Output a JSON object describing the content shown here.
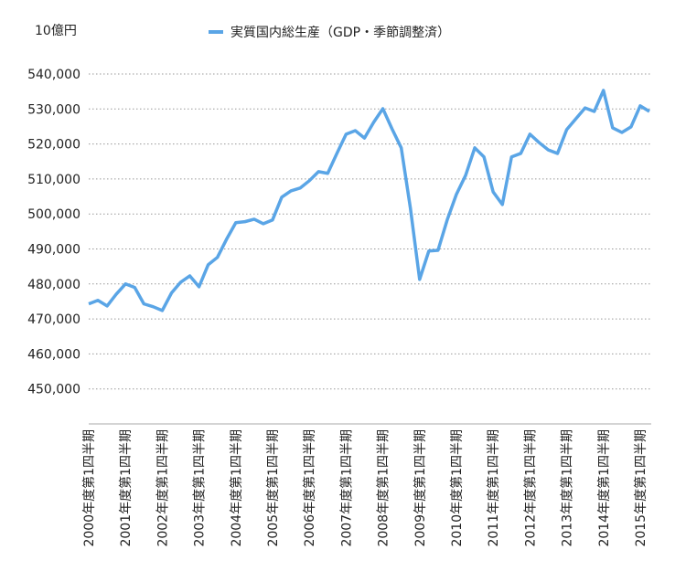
{
  "chart_data": {
    "type": "line",
    "unit_label": "10億円",
    "categories": [
      "2000年度第1四半期",
      null,
      null,
      null,
      "2001年度第1四半期",
      null,
      null,
      null,
      "2002年度第1四半期",
      null,
      null,
      null,
      "2003年度第1四半期",
      null,
      null,
      null,
      "2004年度第1四半期",
      null,
      null,
      null,
      "2005年度第1四半期",
      null,
      null,
      null,
      "2006年度第1四半期",
      null,
      null,
      null,
      "2007年度第1四半期",
      null,
      null,
      null,
      "2008年度第1四半期",
      null,
      null,
      null,
      "2009年度第1四半期",
      null,
      null,
      null,
      "2010年度第1四半期",
      null,
      null,
      null,
      "2011年度第1四半期",
      null,
      null,
      null,
      "2012年度第1四半期",
      null,
      null,
      null,
      "2013年度第1四半期",
      null,
      null,
      null,
      "2014年度第1四半期",
      null,
      null,
      null,
      "2015年度第1四半期",
      null
    ],
    "series": [
      {
        "name": "実質国内総生産（GDP・季節調整済）",
        "color": "#5aa5e6",
        "values": [
          474300,
          475300,
          473700,
          477100,
          480000,
          479000,
          474300,
          473500,
          472400,
          477400,
          480500,
          482300,
          479200,
          485500,
          487600,
          492800,
          497500,
          497800,
          498500,
          497200,
          498300,
          504800,
          506600,
          507400,
          509500,
          512100,
          511600,
          517300,
          522800,
          523800,
          521700,
          526200,
          530100,
          524300,
          518900,
          501600,
          481300,
          489400,
          489600,
          498300,
          505600,
          511000,
          518900,
          516300,
          506300,
          502700,
          516300,
          517300,
          522800,
          520400,
          518300,
          517300,
          524100,
          527200,
          530300,
          529300,
          535300,
          524600,
          523300,
          524900,
          530900,
          529300
        ]
      }
    ],
    "ylim": [
      440000,
      540000
    ],
    "yticks": [
      {
        "value": 450000,
        "label": "450,000"
      },
      {
        "value": 460000,
        "label": "460,000"
      },
      {
        "value": 470000,
        "label": "470,000"
      },
      {
        "value": 480000,
        "label": "480,000"
      },
      {
        "value": 490000,
        "label": "490,000"
      },
      {
        "value": 500000,
        "label": "500,000"
      },
      {
        "value": 510000,
        "label": "510,000"
      },
      {
        "value": 520000,
        "label": "520,000"
      },
      {
        "value": 530000,
        "label": "530,000"
      },
      {
        "value": 540000,
        "label": "540,000"
      }
    ],
    "grid": true,
    "legend": "top"
  }
}
